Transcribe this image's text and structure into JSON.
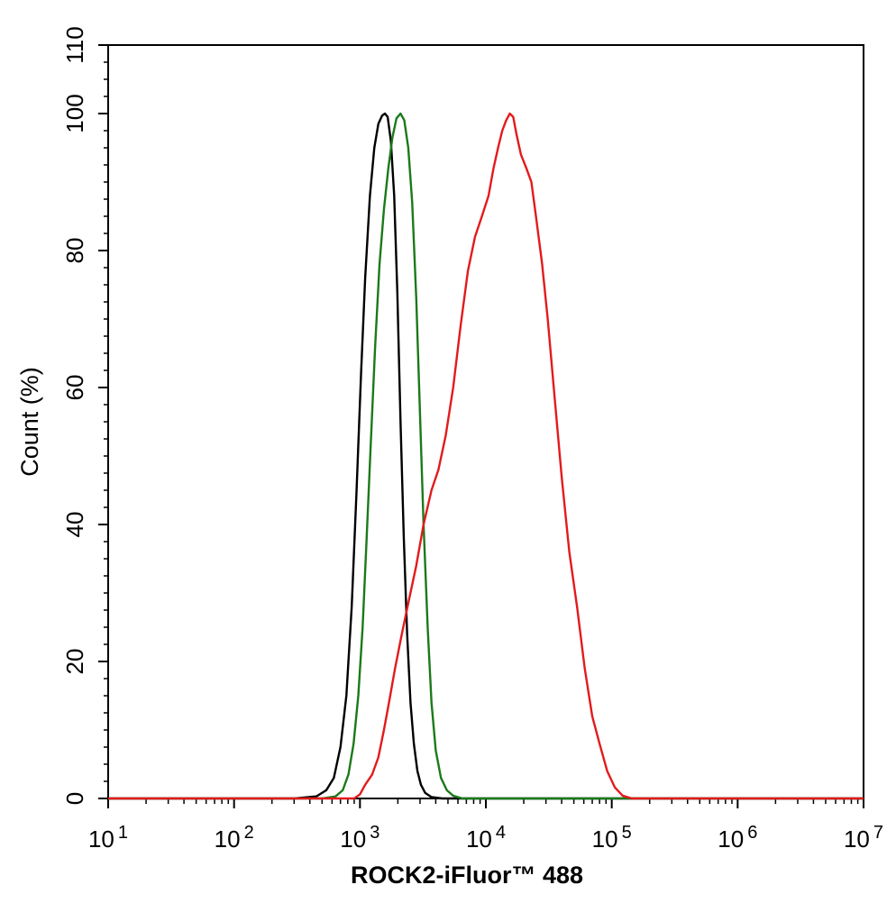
{
  "chart_data": {
    "type": "line",
    "title": "",
    "xlabel": "ROCK2-iFluor™ 488",
    "ylabel": "Count  (%)",
    "xscale": "log",
    "xlim": [
      10,
      10000000
    ],
    "ylim": [
      0,
      110
    ],
    "x_ticks": [
      {
        "value": 10,
        "base": "10",
        "exp": "1"
      },
      {
        "value": 100,
        "base": "10",
        "exp": "2"
      },
      {
        "value": 1000,
        "base": "10",
        "exp": "3"
      },
      {
        "value": 10000,
        "base": "10",
        "exp": "4"
      },
      {
        "value": 100000,
        "base": "10",
        "exp": "5"
      },
      {
        "value": 1000000,
        "base": "10",
        "exp": "6"
      },
      {
        "value": 10000000,
        "base": "10",
        "exp": "7"
      }
    ],
    "y_ticks": [
      {
        "value": 0,
        "label": "0"
      },
      {
        "value": 20,
        "label": "20"
      },
      {
        "value": 40,
        "label": "40"
      },
      {
        "value": 60,
        "label": "60"
      },
      {
        "value": 80,
        "label": "80"
      },
      {
        "value": 100,
        "label": "100"
      },
      {
        "value": 110,
        "label": "110"
      }
    ],
    "grid": false,
    "legend": "none",
    "series": [
      {
        "color": "#000000",
        "points": [
          [
            10,
            0
          ],
          [
            300,
            0
          ],
          [
            450,
            0.3
          ],
          [
            540,
            1.2
          ],
          [
            620,
            3
          ],
          [
            700,
            7.5
          ],
          [
            780,
            15
          ],
          [
            860,
            28
          ],
          [
            940,
            45
          ],
          [
            1020,
            62
          ],
          [
            1100,
            76
          ],
          [
            1200,
            88
          ],
          [
            1300,
            95
          ],
          [
            1400,
            98.5
          ],
          [
            1500,
            99.7
          ],
          [
            1580,
            100
          ],
          [
            1660,
            99.5
          ],
          [
            1760,
            96
          ],
          [
            1870,
            88
          ],
          [
            1980,
            74
          ],
          [
            2100,
            55
          ],
          [
            2230,
            38
          ],
          [
            2370,
            24
          ],
          [
            2520,
            14
          ],
          [
            2680,
            8
          ],
          [
            2860,
            4
          ],
          [
            3050,
            2
          ],
          [
            3300,
            0.8
          ],
          [
            3700,
            0.2
          ],
          [
            4500,
            0
          ],
          [
            10000000,
            0
          ]
        ]
      },
      {
        "color": "#1a7a1a",
        "points": [
          [
            10,
            0
          ],
          [
            500,
            0
          ],
          [
            640,
            0.3
          ],
          [
            730,
            1.2
          ],
          [
            810,
            3.5
          ],
          [
            890,
            8
          ],
          [
            970,
            15
          ],
          [
            1050,
            25
          ],
          [
            1130,
            38
          ],
          [
            1220,
            52
          ],
          [
            1320,
            66
          ],
          [
            1430,
            78
          ],
          [
            1550,
            86
          ],
          [
            1680,
            92
          ],
          [
            1810,
            96.5
          ],
          [
            1950,
            99.3
          ],
          [
            2100,
            100
          ],
          [
            2250,
            99
          ],
          [
            2420,
            95
          ],
          [
            2600,
            87
          ],
          [
            2800,
            73
          ],
          [
            3000,
            56
          ],
          [
            3200,
            40
          ],
          [
            3450,
            25
          ],
          [
            3700,
            14
          ],
          [
            4000,
            7
          ],
          [
            4400,
            3
          ],
          [
            4900,
            1.2
          ],
          [
            5500,
            0.4
          ],
          [
            6500,
            0
          ],
          [
            10000000,
            0
          ]
        ]
      },
      {
        "color": "#e31a1c",
        "points": [
          [
            10,
            0
          ],
          [
            900,
            0
          ],
          [
            1000,
            0.6
          ],
          [
            1100,
            2
          ],
          [
            1250,
            3.5
          ],
          [
            1400,
            6
          ],
          [
            1550,
            10
          ],
          [
            1700,
            14
          ],
          [
            1900,
            19
          ],
          [
            2150,
            24
          ],
          [
            2450,
            29
          ],
          [
            2800,
            34
          ],
          [
            3200,
            40
          ],
          [
            3700,
            45
          ],
          [
            4200,
            48
          ],
          [
            4800,
            53
          ],
          [
            5500,
            60
          ],
          [
            6300,
            69
          ],
          [
            7200,
            77
          ],
          [
            8200,
            82
          ],
          [
            9300,
            85
          ],
          [
            10500,
            88
          ],
          [
            11500,
            92
          ],
          [
            12500,
            95
          ],
          [
            13500,
            97.5
          ],
          [
            14500,
            99
          ],
          [
            15500,
            100
          ],
          [
            16500,
            99.5
          ],
          [
            17500,
            97
          ],
          [
            19000,
            94
          ],
          [
            21000,
            92
          ],
          [
            23000,
            90
          ],
          [
            25000,
            85
          ],
          [
            28000,
            78
          ],
          [
            31000,
            70
          ],
          [
            35000,
            59
          ],
          [
            40000,
            47
          ],
          [
            46000,
            36
          ],
          [
            53000,
            28
          ],
          [
            61000,
            19
          ],
          [
            70000,
            12
          ],
          [
            80000,
            8
          ],
          [
            92000,
            4
          ],
          [
            106000,
            1.6
          ],
          [
            122000,
            0.4
          ],
          [
            145000,
            0
          ],
          [
            10000000,
            0
          ]
        ]
      }
    ]
  }
}
